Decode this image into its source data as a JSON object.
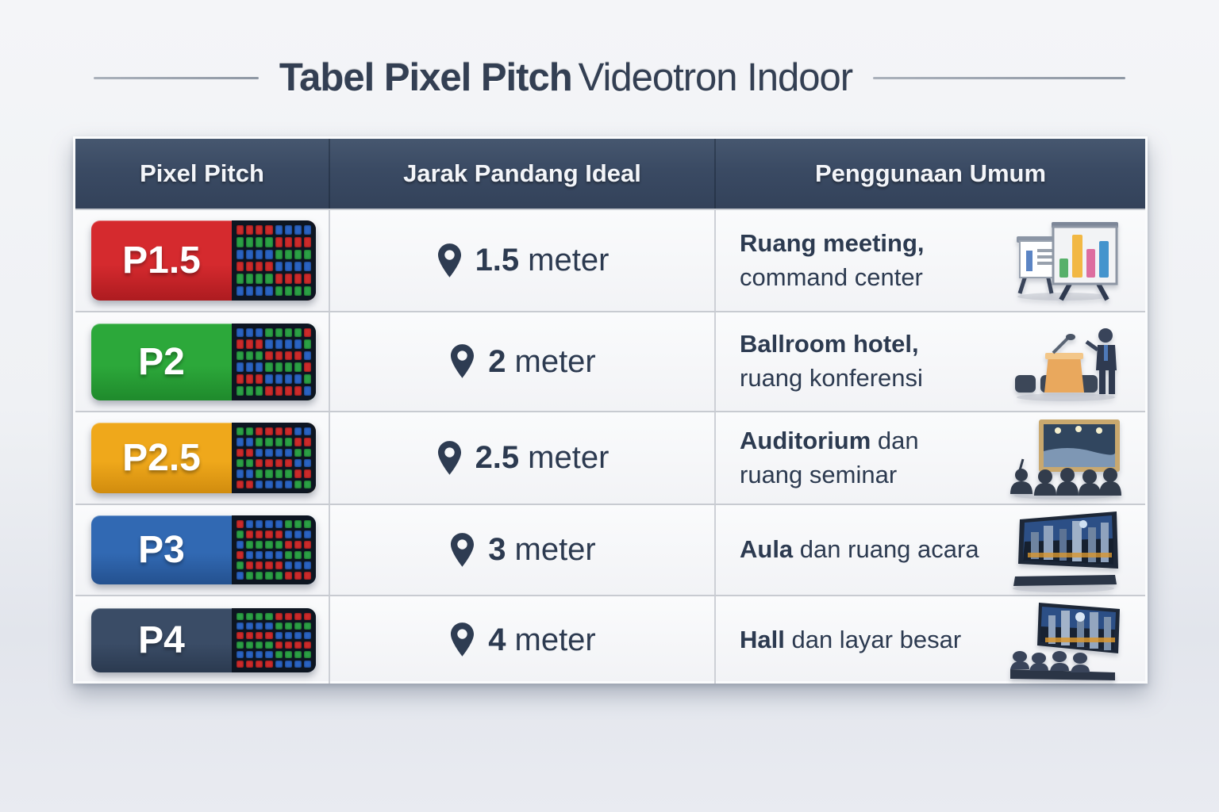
{
  "title": {
    "bold": "Tabel Pixel Pitch",
    "regular": "Videotron Indoor"
  },
  "table": {
    "headers": [
      "Pixel Pitch",
      "Jarak Pandang Ideal",
      "Penggunaan Umum"
    ],
    "rows": [
      {
        "pitch": "P1.5",
        "badge_color": "#d52a2e",
        "badge_color_dark": "#ad1b20",
        "distance_value": "1.5",
        "distance_unit": "meter",
        "usage_line1_bold": "Ruang meeting,",
        "usage_line1_rest": "",
        "usage_line2": "command center"
      },
      {
        "pitch": "P2",
        "badge_color": "#2ca83a",
        "badge_color_dark": "#1f8a2c",
        "distance_value": "2",
        "distance_unit": "meter",
        "usage_line1_bold": "Ballroom hotel,",
        "usage_line1_rest": "",
        "usage_line2": "ruang konferensi"
      },
      {
        "pitch": "P2.5",
        "badge_color": "#efa81b",
        "badge_color_dark": "#d18c0e",
        "distance_value": "2.5",
        "distance_unit": "meter",
        "usage_line1_bold": "Auditorium",
        "usage_line1_rest": " dan",
        "usage_line2": "ruang seminar"
      },
      {
        "pitch": "P3",
        "badge_color": "#3169b3",
        "badge_color_dark": "#24518f",
        "distance_value": "3",
        "distance_unit": "meter",
        "usage_line1_bold": "Aula",
        "usage_line1_rest": " dan ruang acara",
        "usage_line2": ""
      },
      {
        "pitch": "P4",
        "badge_color": "#3a4c66",
        "badge_color_dark": "#2b3a50",
        "distance_value": "4",
        "distance_unit": "meter",
        "usage_line1_bold": "Hall",
        "usage_line1_rest": " dan layar besar",
        "usage_line2": ""
      }
    ]
  },
  "colors": {
    "header_bg": "#3a4a63",
    "body_text": "#2c3a50",
    "led_bg": "#0d1521",
    "led_palette": [
      "#cc2a2a",
      "#2ba045",
      "#2a63c2"
    ]
  },
  "chart_data": {
    "type": "table",
    "title": "Tabel Pixel Pitch Videotron Indoor",
    "columns": [
      "Pixel Pitch",
      "Jarak Pandang Ideal",
      "Penggunaan Umum"
    ],
    "rows": [
      [
        "P1.5",
        "1.5 meter",
        "Ruang meeting, command center"
      ],
      [
        "P2",
        "2 meter",
        "Ballroom hotel, ruang konferensi"
      ],
      [
        "P2.5",
        "2.5 meter",
        "Auditorium dan ruang seminar"
      ],
      [
        "P3",
        "3 meter",
        "Aula dan ruang acara"
      ],
      [
        "P4",
        "4 meter",
        "Hall dan layar besar"
      ]
    ]
  }
}
